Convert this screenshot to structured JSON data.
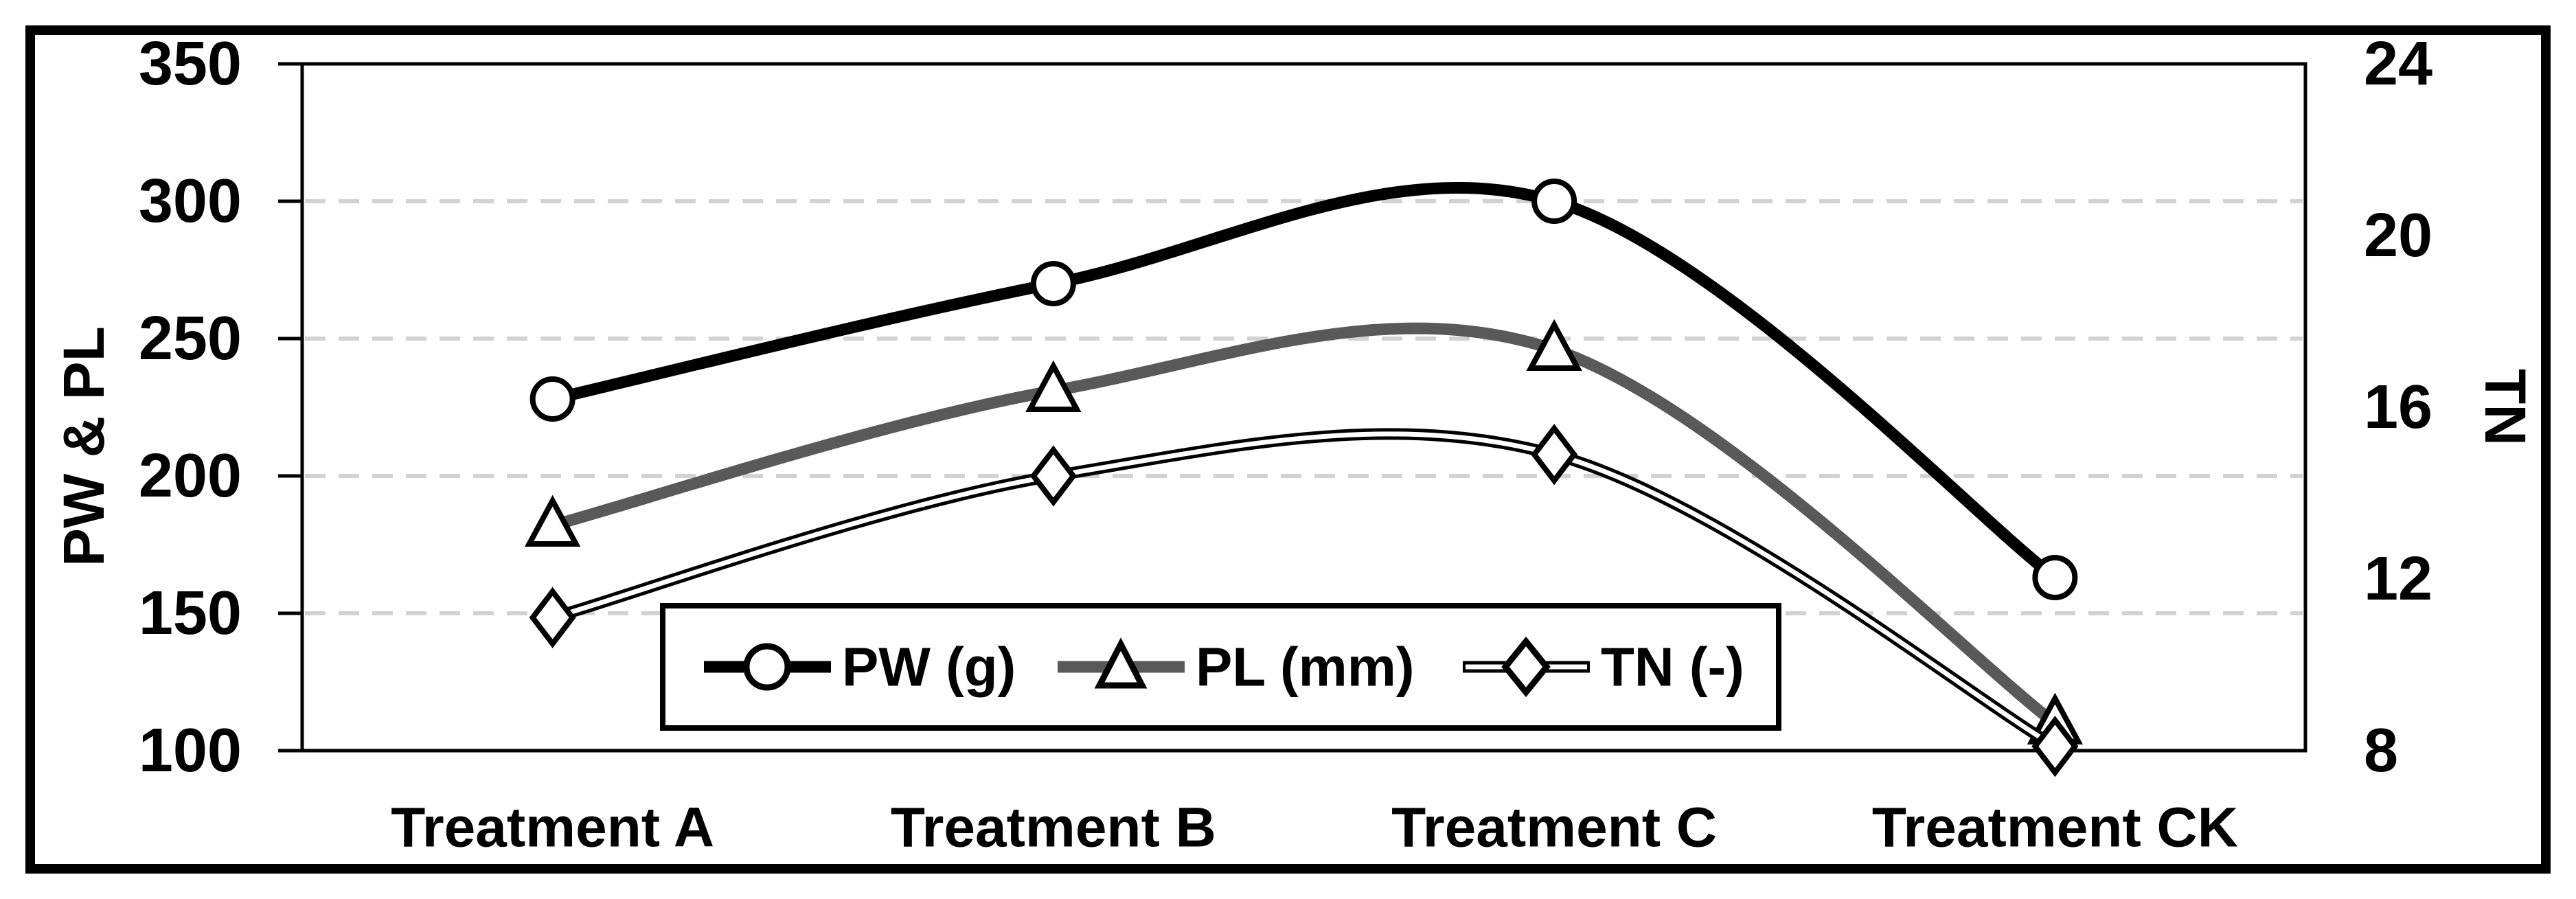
{
  "chart_data": {
    "type": "line",
    "categories": [
      "Treatment A",
      "Treatment B",
      "Treatment C",
      "Treatment CK"
    ],
    "series": [
      {
        "name": "PW (g)",
        "axis": "left",
        "values": [
          228,
          270,
          300,
          163
        ],
        "color": "#000000",
        "marker": "circle",
        "line_style": "solid"
      },
      {
        "name": "PL (mm)",
        "axis": "left",
        "values": [
          182,
          231,
          246,
          110
        ],
        "color": "#595959",
        "marker": "triangle",
        "line_style": "solid"
      },
      {
        "name": "TN (-)",
        "axis": "right",
        "values": [
          11.1,
          14.4,
          14.9,
          8.1
        ],
        "color": "#000000",
        "marker": "diamond",
        "line_style": "double-white-core"
      }
    ],
    "left_axis": {
      "label": "PW & PL",
      "min": 100,
      "max": 350,
      "ticks": [
        350,
        300,
        250,
        200,
        150,
        100
      ]
    },
    "right_axis": {
      "label": "TN",
      "min": 8,
      "max": 24,
      "ticks": [
        24,
        20,
        16,
        12,
        8
      ]
    },
    "gridlines_at_left_values": [
      300,
      250,
      200,
      150
    ],
    "grid": true,
    "legend": {
      "position": "bottom-center-inside",
      "entries": [
        "PW (g)",
        "PL (mm)",
        "TN (-)"
      ]
    },
    "colors": {
      "grid": "#d2d2d2",
      "axis": "#000000",
      "marker_fill": "#ffffff",
      "tn_core": "#ffffff"
    },
    "title": "",
    "xlabel": "",
    "ylabel_left": "PW & PL",
    "ylabel_right": "TN"
  }
}
